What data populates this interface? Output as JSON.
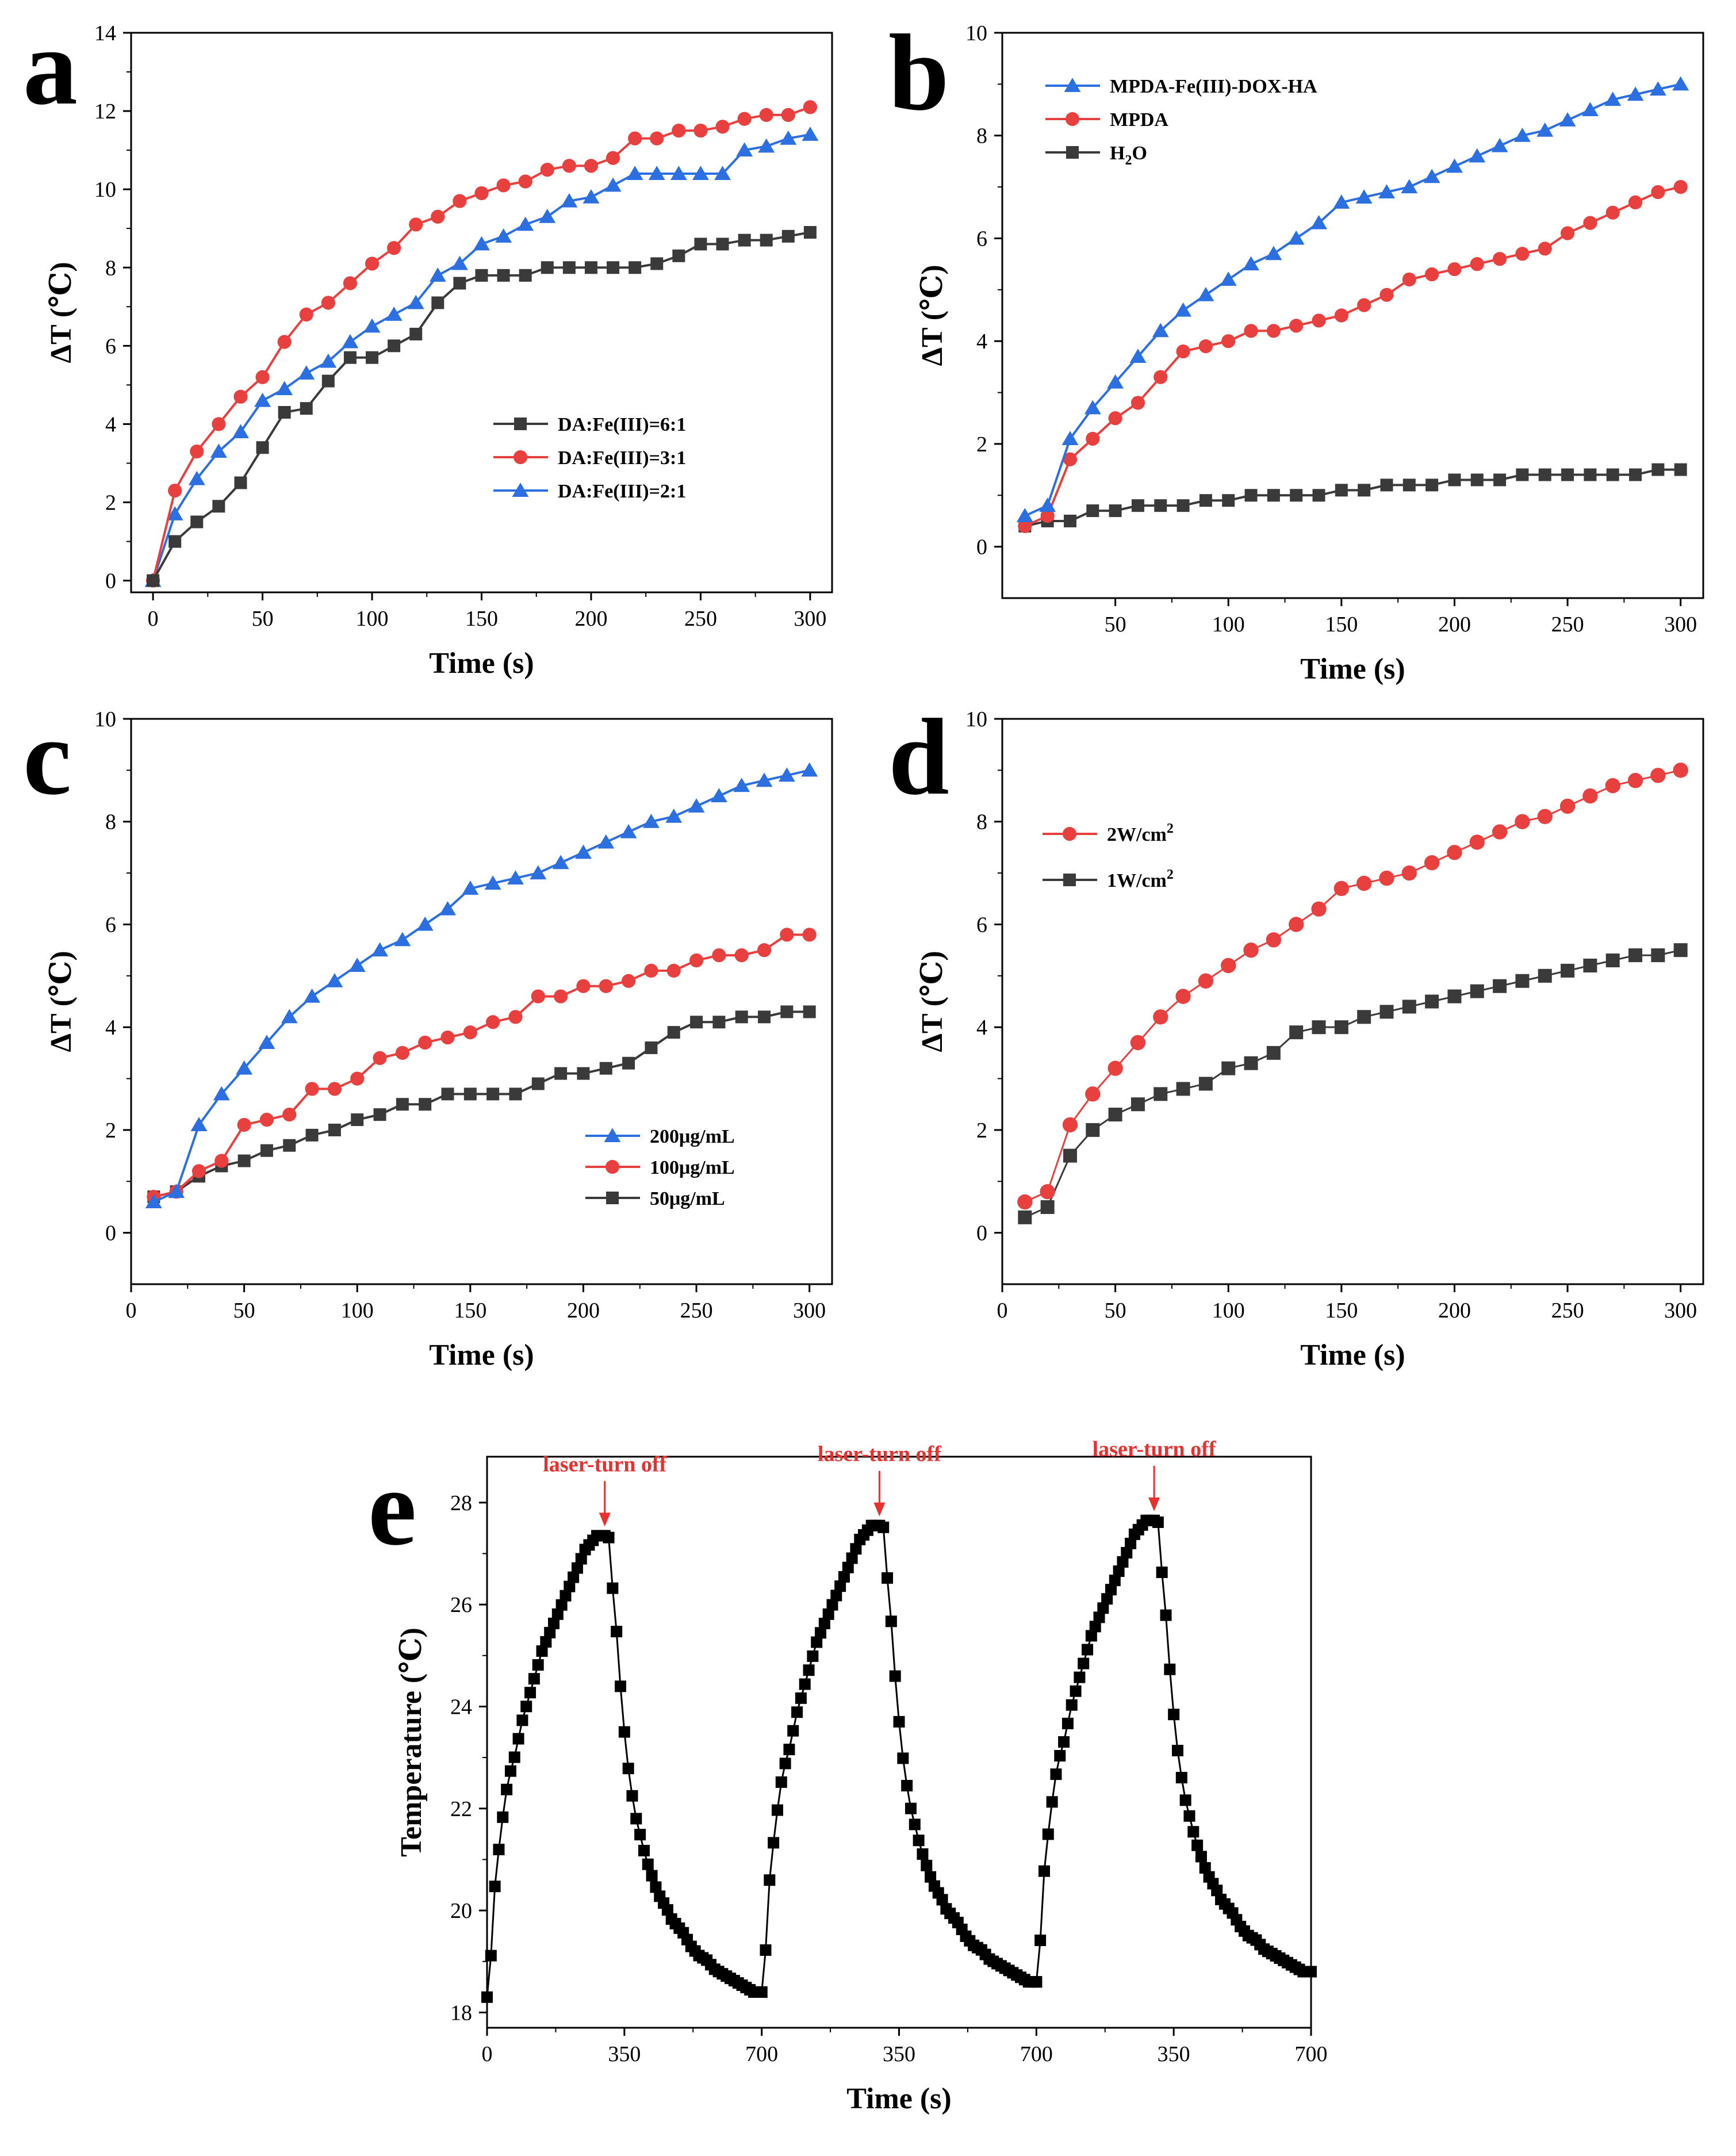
{
  "figure_title": "Photothermal heating curves",
  "colors": {
    "black": "#3a3a3a",
    "red": "#e8403e",
    "blue": "#2b6fe0",
    "annotation": "#e8302e",
    "axis": "#000000"
  },
  "chart_data": [
    {
      "id": "a",
      "type": "line",
      "panel_label": "a",
      "xlabel": "Time (s)",
      "ylabel": "ΔT (℃)",
      "xlim": [
        -10,
        310
      ],
      "ylim": [
        -0.3,
        14
      ],
      "xticks": [
        0,
        50,
        100,
        150,
        200,
        250,
        300
      ],
      "yticks": [
        0,
        2,
        4,
        6,
        8,
        10,
        12,
        14
      ],
      "legend_position": "lower-right",
      "x": [
        0,
        10,
        20,
        30,
        40,
        50,
        60,
        70,
        80,
        90,
        100,
        110,
        120,
        130,
        140,
        150,
        160,
        170,
        180,
        190,
        200,
        210,
        220,
        230,
        240,
        250,
        260,
        270,
        280,
        290,
        300
      ],
      "series": [
        {
          "name": "DA:Fe(III)=6:1",
          "color": "#3a3a3a",
          "marker": "square",
          "values": [
            0,
            1.0,
            1.5,
            1.9,
            2.5,
            3.4,
            4.3,
            4.4,
            5.1,
            5.7,
            5.7,
            6.0,
            6.3,
            7.1,
            7.6,
            7.8,
            7.8,
            7.8,
            8.0,
            8.0,
            8.0,
            8.0,
            8.0,
            8.1,
            8.3,
            8.6,
            8.6,
            8.7,
            8.7,
            8.8,
            8.9
          ]
        },
        {
          "name": "DA:Fe(III)=3:1",
          "color": "#e8403e",
          "marker": "circle",
          "values": [
            0,
            2.3,
            3.3,
            4.0,
            4.7,
            5.2,
            6.1,
            6.8,
            7.1,
            7.6,
            8.1,
            8.5,
            9.1,
            9.3,
            9.7,
            9.9,
            10.1,
            10.2,
            10.5,
            10.6,
            10.6,
            10.8,
            11.3,
            11.3,
            11.5,
            11.5,
            11.6,
            11.8,
            11.9,
            11.9,
            12.1
          ]
        },
        {
          "name": "DA:Fe(III)=2:1",
          "color": "#2b6fe0",
          "marker": "triangle",
          "values": [
            0,
            1.7,
            2.6,
            3.3,
            3.8,
            4.6,
            4.9,
            5.3,
            5.6,
            6.1,
            6.5,
            6.8,
            7.1,
            7.8,
            8.1,
            8.6,
            8.8,
            9.1,
            9.3,
            9.7,
            9.8,
            10.1,
            10.4,
            10.4,
            10.4,
            10.4,
            10.4,
            11.0,
            11.1,
            11.3,
            11.4
          ]
        }
      ]
    },
    {
      "id": "b",
      "type": "line",
      "panel_label": "b",
      "xlabel": "Time (s)",
      "ylabel": "ΔT (℃)",
      "xlim": [
        0,
        310
      ],
      "ylim": [
        -1,
        10
      ],
      "xticks": [
        50,
        100,
        150,
        200,
        250,
        300
      ],
      "yticks": [
        0,
        2,
        4,
        6,
        8,
        10
      ],
      "legend_position": "top-left",
      "x": [
        10,
        20,
        30,
        40,
        50,
        60,
        70,
        80,
        90,
        100,
        110,
        120,
        130,
        140,
        150,
        160,
        170,
        180,
        190,
        200,
        210,
        220,
        230,
        240,
        250,
        260,
        270,
        280,
        290,
        300
      ],
      "series": [
        {
          "name": "MPDA-Fe(III)-DOX-HA",
          "color": "#2b6fe0",
          "marker": "triangle",
          "values": [
            0.6,
            0.8,
            2.1,
            2.7,
            3.2,
            3.7,
            4.2,
            4.6,
            4.9,
            5.2,
            5.5,
            5.7,
            6.0,
            6.3,
            6.7,
            6.8,
            6.9,
            7.0,
            7.2,
            7.4,
            7.6,
            7.8,
            8.0,
            8.1,
            8.3,
            8.5,
            8.7,
            8.8,
            8.9,
            9.0
          ]
        },
        {
          "name": "MPDA",
          "color": "#e8403e",
          "marker": "circle",
          "values": [
            0.4,
            0.6,
            1.7,
            2.1,
            2.5,
            2.8,
            3.3,
            3.8,
            3.9,
            4.0,
            4.2,
            4.2,
            4.3,
            4.4,
            4.5,
            4.7,
            4.9,
            5.2,
            5.3,
            5.4,
            5.5,
            5.6,
            5.7,
            5.8,
            6.1,
            6.3,
            6.5,
            6.7,
            6.9,
            7.0
          ]
        },
        {
          "name": "H",
          "name_sub": "2",
          "name_tail": "O",
          "color": "#3a3a3a",
          "marker": "square",
          "values": [
            0.4,
            0.5,
            0.5,
            0.7,
            0.7,
            0.8,
            0.8,
            0.8,
            0.9,
            0.9,
            1.0,
            1.0,
            1.0,
            1.0,
            1.1,
            1.1,
            1.2,
            1.2,
            1.2,
            1.3,
            1.3,
            1.3,
            1.4,
            1.4,
            1.4,
            1.4,
            1.4,
            1.4,
            1.5,
            1.5
          ]
        }
      ]
    },
    {
      "id": "c",
      "type": "line",
      "panel_label": "c",
      "xlabel": "Time (s)",
      "ylabel": "ΔT (℃)",
      "xlim": [
        0,
        310
      ],
      "ylim": [
        -1,
        10
      ],
      "xticks": [
        0,
        50,
        100,
        150,
        200,
        250,
        300
      ],
      "yticks": [
        0,
        2,
        4,
        6,
        8,
        10
      ],
      "legend_position": "lower-right",
      "x": [
        10,
        20,
        30,
        40,
        50,
        60,
        70,
        80,
        90,
        100,
        110,
        120,
        130,
        140,
        150,
        160,
        170,
        180,
        190,
        200,
        210,
        220,
        230,
        240,
        250,
        260,
        270,
        280,
        290,
        300
      ],
      "series": [
        {
          "name": "200μg/mL",
          "color": "#2b6fe0",
          "marker": "triangle",
          "values": [
            0.6,
            0.8,
            2.1,
            2.7,
            3.2,
            3.7,
            4.2,
            4.6,
            4.9,
            5.2,
            5.5,
            5.7,
            6.0,
            6.3,
            6.7,
            6.8,
            6.9,
            7.0,
            7.2,
            7.4,
            7.6,
            7.8,
            8.0,
            8.1,
            8.3,
            8.5,
            8.7,
            8.8,
            8.9,
            9.0
          ]
        },
        {
          "name": "100μg/mL",
          "color": "#e8403e",
          "marker": "circle",
          "values": [
            0.7,
            0.8,
            1.2,
            1.4,
            2.1,
            2.2,
            2.3,
            2.8,
            2.8,
            3.0,
            3.4,
            3.5,
            3.7,
            3.8,
            3.9,
            4.1,
            4.2,
            4.6,
            4.6,
            4.8,
            4.8,
            4.9,
            5.1,
            5.1,
            5.3,
            5.4,
            5.4,
            5.5,
            5.8,
            5.8
          ]
        },
        {
          "name": "50μg/mL",
          "color": "#3a3a3a",
          "marker": "square",
          "values": [
            0.7,
            0.8,
            1.1,
            1.3,
            1.4,
            1.6,
            1.7,
            1.9,
            2.0,
            2.2,
            2.3,
            2.5,
            2.5,
            2.7,
            2.7,
            2.7,
            2.7,
            2.9,
            3.1,
            3.1,
            3.2,
            3.3,
            3.6,
            3.9,
            4.1,
            4.1,
            4.2,
            4.2,
            4.3,
            4.3
          ]
        }
      ]
    },
    {
      "id": "d",
      "type": "line",
      "panel_label": "d",
      "xlabel": "Time (s)",
      "ylabel": "ΔT (℃)",
      "xlim": [
        0,
        310
      ],
      "ylim": [
        -1,
        10
      ],
      "xticks": [
        0,
        50,
        100,
        150,
        200,
        250,
        300
      ],
      "yticks": [
        0,
        2,
        4,
        6,
        8,
        10
      ],
      "legend_position": "top-left",
      "x": [
        10,
        20,
        30,
        40,
        50,
        60,
        70,
        80,
        90,
        100,
        110,
        120,
        130,
        140,
        150,
        160,
        170,
        180,
        190,
        200,
        210,
        220,
        230,
        240,
        250,
        260,
        270,
        280,
        290,
        300
      ],
      "series": [
        {
          "name": "2W/cm",
          "name_sup": "2",
          "color": "#e8403e",
          "marker": "circle",
          "values": [
            0.6,
            0.8,
            2.1,
            2.7,
            3.2,
            3.7,
            4.2,
            4.6,
            4.9,
            5.2,
            5.5,
            5.7,
            6.0,
            6.3,
            6.7,
            6.8,
            6.9,
            7.0,
            7.2,
            7.4,
            7.6,
            7.8,
            8.0,
            8.1,
            8.3,
            8.5,
            8.7,
            8.8,
            8.9,
            9.0
          ]
        },
        {
          "name": "1W/cm",
          "name_sup": "2",
          "color": "#3a3a3a",
          "marker": "square",
          "values": [
            0.3,
            0.5,
            1.5,
            2.0,
            2.3,
            2.5,
            2.7,
            2.8,
            2.9,
            3.2,
            3.3,
            3.5,
            3.9,
            4.0,
            4.0,
            4.2,
            4.3,
            4.4,
            4.5,
            4.6,
            4.7,
            4.8,
            4.9,
            5.0,
            5.1,
            5.2,
            5.3,
            5.4,
            5.4,
            5.5
          ]
        }
      ]
    },
    {
      "id": "e",
      "type": "scatter",
      "panel_label": "e",
      "xlabel": "Time (s)",
      "ylabel": "Temperature (℃)",
      "xlim": [
        0,
        2100
      ],
      "ylim": [
        17.7,
        28.9
      ],
      "xticks": [
        0,
        350,
        700,
        1050,
        1400,
        1750,
        2100
      ],
      "xtick_labels": [
        "0",
        "350",
        "700",
        "350",
        "700",
        "350",
        "700"
      ],
      "yticks": [
        18,
        20,
        22,
        24,
        26,
        28
      ],
      "annotation_text": "laser-turn off",
      "annotations": [
        {
          "text": "laser-turn off",
          "x": 300,
          "y": 27.35
        },
        {
          "text": "laser-turn off",
          "x": 1000,
          "y": 27.55
        },
        {
          "text": "laser-turn off",
          "x": 1700,
          "y": 27.65
        }
      ],
      "cycles": [
        {
          "start": 0,
          "heat_end": 300,
          "end": 700,
          "t_start": 18.3,
          "t_peak": 27.35,
          "t_end": 18.4
        },
        {
          "start": 700,
          "heat_end": 1000,
          "end": 1400,
          "t_start": 18.4,
          "t_peak": 27.55,
          "t_end": 18.6
        },
        {
          "start": 1400,
          "heat_end": 1700,
          "end": 2100,
          "t_start": 18.6,
          "t_peak": 27.65,
          "t_end": 18.8
        }
      ],
      "heating_profile": [
        0,
        0.09,
        0.24,
        0.32,
        0.39,
        0.45,
        0.49,
        0.52,
        0.56,
        0.6,
        0.63,
        0.66,
        0.69,
        0.72,
        0.75,
        0.77,
        0.79,
        0.81,
        0.83,
        0.85,
        0.87,
        0.89,
        0.91,
        0.93,
        0.95,
        0.97,
        0.98,
        0.99,
        1.0,
        1.0,
        1.0
      ],
      "cooling_profile": [
        1.0,
        0.996,
        0.885,
        0.79,
        0.67,
        0.57,
        0.49,
        0.43,
        0.38,
        0.345,
        0.31,
        0.28,
        0.255,
        0.23,
        0.21,
        0.195,
        0.18,
        0.16,
        0.15,
        0.14,
        0.13,
        0.115,
        0.1,
        0.09,
        0.08,
        0.075,
        0.07,
        0.06,
        0.05,
        0.045,
        0.04,
        0.035,
        0.03,
        0.025,
        0.02,
        0.015,
        0.01,
        0.005,
        0.0,
        0.0,
        0.0
      ],
      "series": [
        {
          "name": "Temperature",
          "color": "#000000",
          "marker": "square"
        }
      ]
    }
  ]
}
